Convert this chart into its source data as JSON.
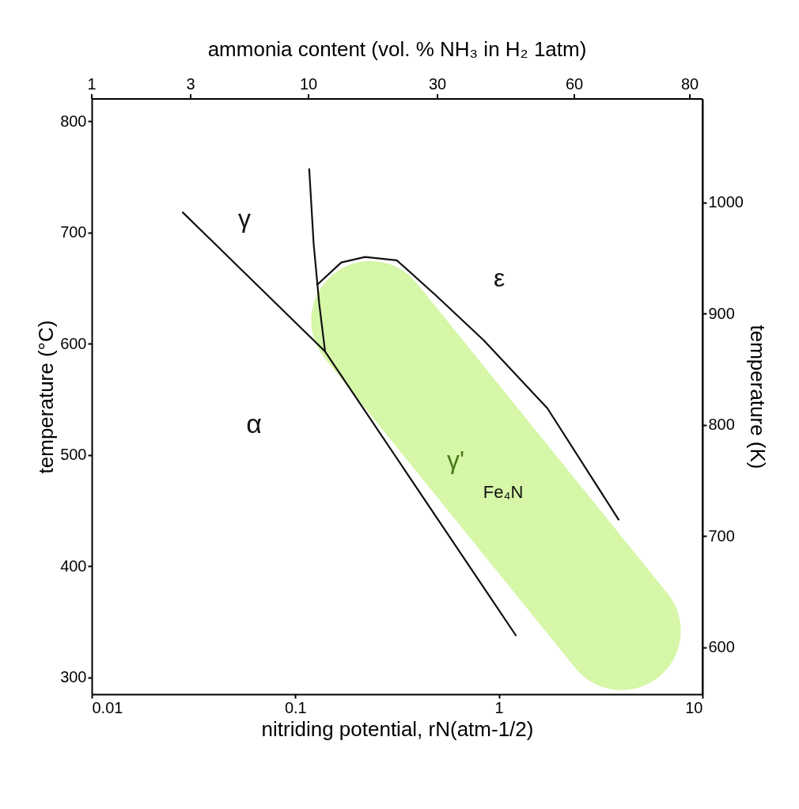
{
  "chart_data": {
    "type": "line",
    "xlabel": "nitriding potential, rN(atm-1/2)",
    "x2label": "ammonia content (vol. % NH₃ in H₂ 1atm)",
    "ylabel": "temperature (°C)",
    "y2label": "temperature (K)",
    "log": "x",
    "xlim": [
      0.01,
      10
    ],
    "xticks": [
      0.01,
      0.1,
      1,
      10
    ],
    "ylim": [
      285,
      820
    ],
    "yticks": [
      300,
      400,
      500,
      600,
      700,
      800
    ],
    "y2lim": [
      558,
      1093
    ],
    "y2ticks": [
      600,
      700,
      800,
      900,
      1000
    ],
    "grid": false,
    "marker": "none",
    "line_style": "solid",
    "series": [
      {
        "color": "#d4f5a3",
        "x": [
          0.234,
          4.0
        ],
        "values": [
          621,
          342
        ]
      },
      {
        "color": "#111111",
        "x": [
          0.028,
          0.14,
          1.21
        ],
        "values": [
          718,
          593,
          338
        ]
      },
      {
        "color": "#111111",
        "x": [
          0.117,
          0.123,
          0.131,
          0.14
        ],
        "values": [
          757,
          690,
          636,
          593
        ]
      },
      {
        "color": "#111111",
        "x": [
          0.128,
          0.168,
          0.22,
          0.315,
          0.493,
          0.843,
          1.73,
          3.87
        ],
        "values": [
          653,
          673,
          678,
          675,
          643,
          603,
          542,
          442
        ]
      }
    ],
    "annotations": [
      "γ",
      "ε",
      "α",
      "γ'",
      "Fe₄N",
      "1",
      "3",
      "10",
      "30",
      "60",
      "80"
    ]
  }
}
